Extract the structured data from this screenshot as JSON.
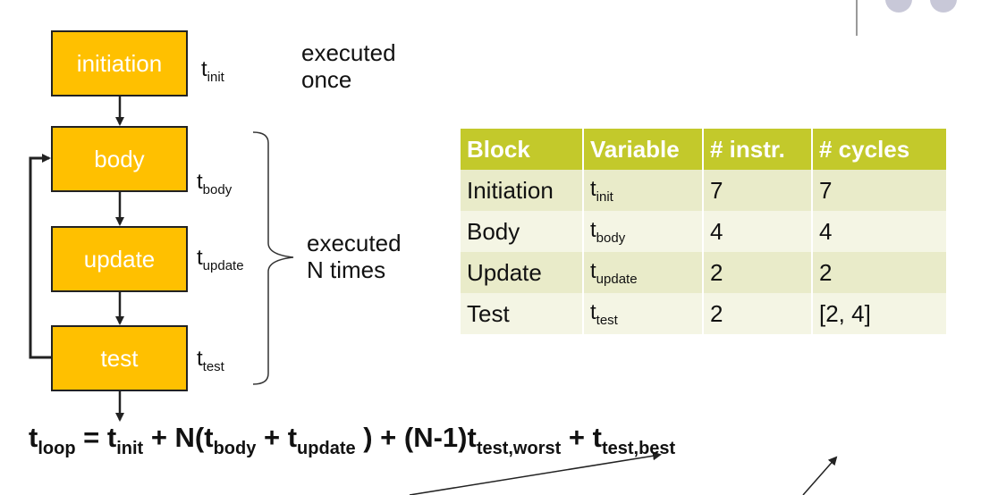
{
  "flowchart": {
    "blocks": [
      {
        "id": "init",
        "label": "initiation",
        "var_base": "t",
        "var_sub": "init"
      },
      {
        "id": "body",
        "label": "body",
        "var_base": "t",
        "var_sub": "body"
      },
      {
        "id": "update",
        "label": "update",
        "var_base": "t",
        "var_sub": "update"
      },
      {
        "id": "test",
        "label": "test",
        "var_base": "t",
        "var_sub": "test"
      }
    ],
    "note_once_line1": "executed",
    "note_once_line2": "once",
    "note_loop_line1": "executed",
    "note_loop_line2": "N times"
  },
  "table": {
    "headers": [
      "Block",
      "Variable",
      "# instr.",
      "# cycles"
    ],
    "rows": [
      {
        "block": "Initiation",
        "var_base": "t",
        "var_sub": "init",
        "instr": "7",
        "cycles": "7"
      },
      {
        "block": "Body",
        "var_base": "t",
        "var_sub": "body",
        "instr": "4",
        "cycles": "4"
      },
      {
        "block": "Update",
        "var_base": "t",
        "var_sub": "update",
        "instr": "2",
        "cycles": "2"
      },
      {
        "block": "Test",
        "var_base": "t",
        "var_sub": "test",
        "instr": "2",
        "cycles": "[2, 4]"
      }
    ]
  },
  "formula": {
    "t": "t",
    "loop_sub": "loop",
    "eq": " = ",
    "init_sub": "init",
    "plus_n": " + N(",
    "body_sub": "body",
    "plus": " + ",
    "update_sub": "update",
    "close_n1": " ) + (N-1)",
    "worst_sub": "test,worst",
    "plus2": " + ",
    "best_sub": "test,best"
  },
  "colors": {
    "block_fill": "#ffc000",
    "table_header": "#c3c92b",
    "row_odd": "#e9ebc9",
    "row_even": "#f4f5e4"
  }
}
